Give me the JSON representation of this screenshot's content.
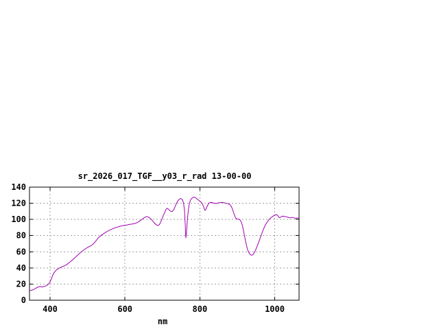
{
  "window": {
    "background": "#ffffff"
  },
  "chart_data": {
    "type": "line",
    "title": "sr_2026_017_TGF__y03_r_rad 13-00-00",
    "xlabel": "nm",
    "ylabel": "",
    "xlim": [
      345,
      1065
    ],
    "ylim": [
      0,
      140
    ],
    "xticks": [
      "400",
      "600",
      "800",
      "1000"
    ],
    "xtick_values": [
      400,
      600,
      800,
      1000
    ],
    "yticks": [
      "0",
      "20",
      "40",
      "60",
      "80",
      "100",
      "120",
      "140"
    ],
    "ytick_values": [
      0,
      20,
      40,
      60,
      80,
      100,
      120,
      140
    ],
    "grid": true,
    "legend": "none",
    "colors": {
      "line": "#a000b0",
      "grid": "#9e9e9e",
      "axis": "#000000",
      "text": "#000000",
      "background": "#ffffff"
    },
    "series": [
      {
        "name": "sr_2026_017_TGF__y03_r_rad",
        "points_format": [
          "wavelength_nm",
          "radiance"
        ],
        "points": [
          [
            345,
            12
          ],
          [
            350,
            12.3
          ],
          [
            355,
            13
          ],
          [
            360,
            14.2
          ],
          [
            365,
            15.7
          ],
          [
            370,
            16.6
          ],
          [
            374,
            17
          ],
          [
            378,
            16.4
          ],
          [
            382,
            16.6
          ],
          [
            386,
            17.2
          ],
          [
            390,
            18
          ],
          [
            394,
            19.2
          ],
          [
            397,
            20.5
          ],
          [
            400,
            22.8
          ],
          [
            403,
            26
          ],
          [
            406,
            29.8
          ],
          [
            409,
            32.8
          ],
          [
            412,
            35
          ],
          [
            415,
            36.6
          ],
          [
            418,
            37.8
          ],
          [
            421,
            38.8
          ],
          [
            425,
            39.9
          ],
          [
            429,
            40.8
          ],
          [
            433,
            41.5
          ],
          [
            437,
            42.3
          ],
          [
            441,
            43.2
          ],
          [
            445,
            44.3
          ],
          [
            449,
            45.7
          ],
          [
            453,
            47.2
          ],
          [
            457,
            48.8
          ],
          [
            461,
            50.4
          ],
          [
            465,
            52
          ],
          [
            469,
            53.8
          ],
          [
            473,
            55.5
          ],
          [
            477,
            57.2
          ],
          [
            481,
            58.9
          ],
          [
            485,
            60.4
          ],
          [
            489,
            61.9
          ],
          [
            493,
            63.2
          ],
          [
            497,
            64.4
          ],
          [
            501,
            65.6
          ],
          [
            505,
            66.5
          ],
          [
            509,
            67.4
          ],
          [
            513,
            68.7
          ],
          [
            517,
            70.4
          ],
          [
            521,
            72.6
          ],
          [
            525,
            75
          ],
          [
            529,
            77.2
          ],
          [
            533,
            78.9
          ],
          [
            537,
            80.4
          ],
          [
            541,
            81.8
          ],
          [
            545,
            83
          ],
          [
            549,
            84.2
          ],
          [
            553,
            85.3
          ],
          [
            557,
            86.3
          ],
          [
            561,
            87.2
          ],
          [
            565,
            88
          ],
          [
            569,
            88.8
          ],
          [
            573,
            89.5
          ],
          [
            577,
            90.1
          ],
          [
            581,
            90.7
          ],
          [
            585,
            91.3
          ],
          [
            589,
            91.8
          ],
          [
            593,
            92.2
          ],
          [
            597,
            92.5
          ],
          [
            601,
            92.9
          ],
          [
            605,
            93.2
          ],
          [
            609,
            93.6
          ],
          [
            613,
            93.9
          ],
          [
            617,
            94.2
          ],
          [
            621,
            94.5
          ],
          [
            625,
            94.9
          ],
          [
            629,
            95.4
          ],
          [
            633,
            96.2
          ],
          [
            637,
            97.3
          ],
          [
            641,
            98.6
          ],
          [
            645,
            100
          ],
          [
            649,
            101.4
          ],
          [
            653,
            102.6
          ],
          [
            657,
            103.4
          ],
          [
            661,
            103.2
          ],
          [
            665,
            102.3
          ],
          [
            669,
            100.7
          ],
          [
            673,
            98.7
          ],
          [
            677,
            96.4
          ],
          [
            681,
            94.4
          ],
          [
            685,
            93
          ],
          [
            688,
            92.5
          ],
          [
            691,
            93.2
          ],
          [
            694,
            95.2
          ],
          [
            697,
            98.5
          ],
          [
            700,
            102
          ],
          [
            703,
            105.5
          ],
          [
            707,
            109.5
          ],
          [
            710,
            112.8
          ],
          [
            713,
            113.8
          ],
          [
            716,
            112.8
          ],
          [
            719,
            111.2
          ],
          [
            722,
            110.1
          ],
          [
            725,
            109.8
          ],
          [
            728,
            110.6
          ],
          [
            731,
            112.8
          ],
          [
            734,
            116
          ],
          [
            737,
            119.3
          ],
          [
            740,
            121.9
          ],
          [
            743,
            123.9
          ],
          [
            746,
            125.3
          ],
          [
            749,
            125.9
          ],
          [
            752,
            125.1
          ],
          [
            755,
            122.5
          ],
          [
            757,
            118.5
          ],
          [
            759,
            111
          ],
          [
            761,
            93
          ],
          [
            762.5,
            77
          ],
          [
            764,
            82
          ],
          [
            766,
            95
          ],
          [
            768,
            106
          ],
          [
            770,
            114
          ],
          [
            772,
            119.5
          ],
          [
            774,
            122.8
          ],
          [
            776,
            124.8
          ],
          [
            779,
            126.3
          ],
          [
            782,
            127.2
          ],
          [
            785,
            127.6
          ],
          [
            788,
            127.1
          ],
          [
            791,
            126
          ],
          [
            794,
            124.8
          ],
          [
            797,
            123.7
          ],
          [
            800,
            122.7
          ],
          [
            803,
            121.6
          ],
          [
            806,
            119.9
          ],
          [
            809,
            117
          ],
          [
            812,
            113
          ],
          [
            814,
            111.2
          ],
          [
            816,
            112.5
          ],
          [
            819,
            115.8
          ],
          [
            822,
            118.6
          ],
          [
            825,
            120.3
          ],
          [
            828,
            121
          ],
          [
            832,
            120.9
          ],
          [
            836,
            120.4
          ],
          [
            840,
            119.9
          ],
          [
            844,
            119.9
          ],
          [
            848,
            120.3
          ],
          [
            852,
            120.7
          ],
          [
            856,
            120.9
          ],
          [
            860,
            120.9
          ],
          [
            864,
            120.7
          ],
          [
            868,
            120.3
          ],
          [
            872,
            119.9
          ],
          [
            876,
            119.4
          ],
          [
            880,
            118.4
          ],
          [
            883,
            116.8
          ],
          [
            886,
            114
          ],
          [
            889,
            110
          ],
          [
            892,
            105.8
          ],
          [
            895,
            102.5
          ],
          [
            898,
            100.6
          ],
          [
            901,
            100.3
          ],
          [
            904,
            100.3
          ],
          [
            907,
            99.6
          ],
          [
            910,
            97.5
          ],
          [
            913,
            93.5
          ],
          [
            916,
            87.5
          ],
          [
            919,
            80.5
          ],
          [
            922,
            73.5
          ],
          [
            925,
            67
          ],
          [
            928,
            62
          ],
          [
            931,
            58.8
          ],
          [
            934,
            56.8
          ],
          [
            937,
            55.8
          ],
          [
            940,
            55.9
          ],
          [
            943,
            57
          ],
          [
            946,
            59.3
          ],
          [
            949,
            62.3
          ],
          [
            952,
            65.6
          ],
          [
            955,
            69.2
          ],
          [
            958,
            72.9
          ],
          [
            961,
            76.7
          ],
          [
            964,
            80.6
          ],
          [
            967,
            84.4
          ],
          [
            970,
            88
          ],
          [
            973,
            91.2
          ],
          [
            976,
            93.9
          ],
          [
            979,
            96.2
          ],
          [
            982,
            98.2
          ],
          [
            985,
            99.9
          ],
          [
            988,
            101.3
          ],
          [
            991,
            102.5
          ],
          [
            994,
            103.6
          ],
          [
            997,
            104.5
          ],
          [
            1000,
            105.2
          ],
          [
            1003,
            105.8
          ],
          [
            1006,
            105.6
          ],
          [
            1009,
            104.2
          ],
          [
            1012,
            102.2
          ],
          [
            1015,
            102.6
          ],
          [
            1018,
            103.5
          ],
          [
            1021,
            104
          ],
          [
            1024,
            103.9
          ],
          [
            1027,
            103.6
          ],
          [
            1030,
            103.3
          ],
          [
            1033,
            103
          ],
          [
            1036,
            102.7
          ],
          [
            1039,
            102.2
          ],
          [
            1042,
            102
          ],
          [
            1045,
            102.4
          ],
          [
            1048,
            102.5
          ],
          [
            1051,
            102.1
          ],
          [
            1054,
            101.6
          ],
          [
            1057,
            101.5
          ],
          [
            1060,
            101.9
          ],
          [
            1063,
            101.4
          ],
          [
            1065,
            101.6
          ]
        ]
      }
    ]
  }
}
